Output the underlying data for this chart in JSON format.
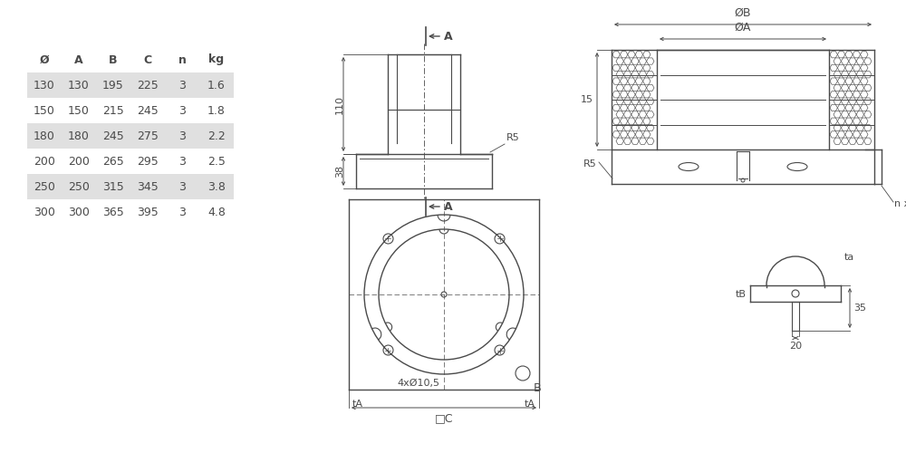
{
  "table_headers": [
    "Ø",
    "A",
    "B",
    "C",
    "n",
    "kg"
  ],
  "table_data": [
    [
      "130",
      "130",
      "195",
      "225",
      "3",
      "1.6"
    ],
    [
      "150",
      "150",
      "215",
      "245",
      "3",
      "1.8"
    ],
    [
      "180",
      "180",
      "245",
      "275",
      "3",
      "2.2"
    ],
    [
      "200",
      "200",
      "265",
      "295",
      "3",
      "2.5"
    ],
    [
      "250",
      "250",
      "315",
      "345",
      "3",
      "3.8"
    ],
    [
      "300",
      "300",
      "365",
      "395",
      "3",
      "4.8"
    ]
  ],
  "shaded_rows": [
    0,
    2,
    4
  ],
  "bg_color": "#ffffff",
  "line_color": "#4a4a4a",
  "text_color": "#4a4a4a",
  "shade_color": "#e0e0e0"
}
